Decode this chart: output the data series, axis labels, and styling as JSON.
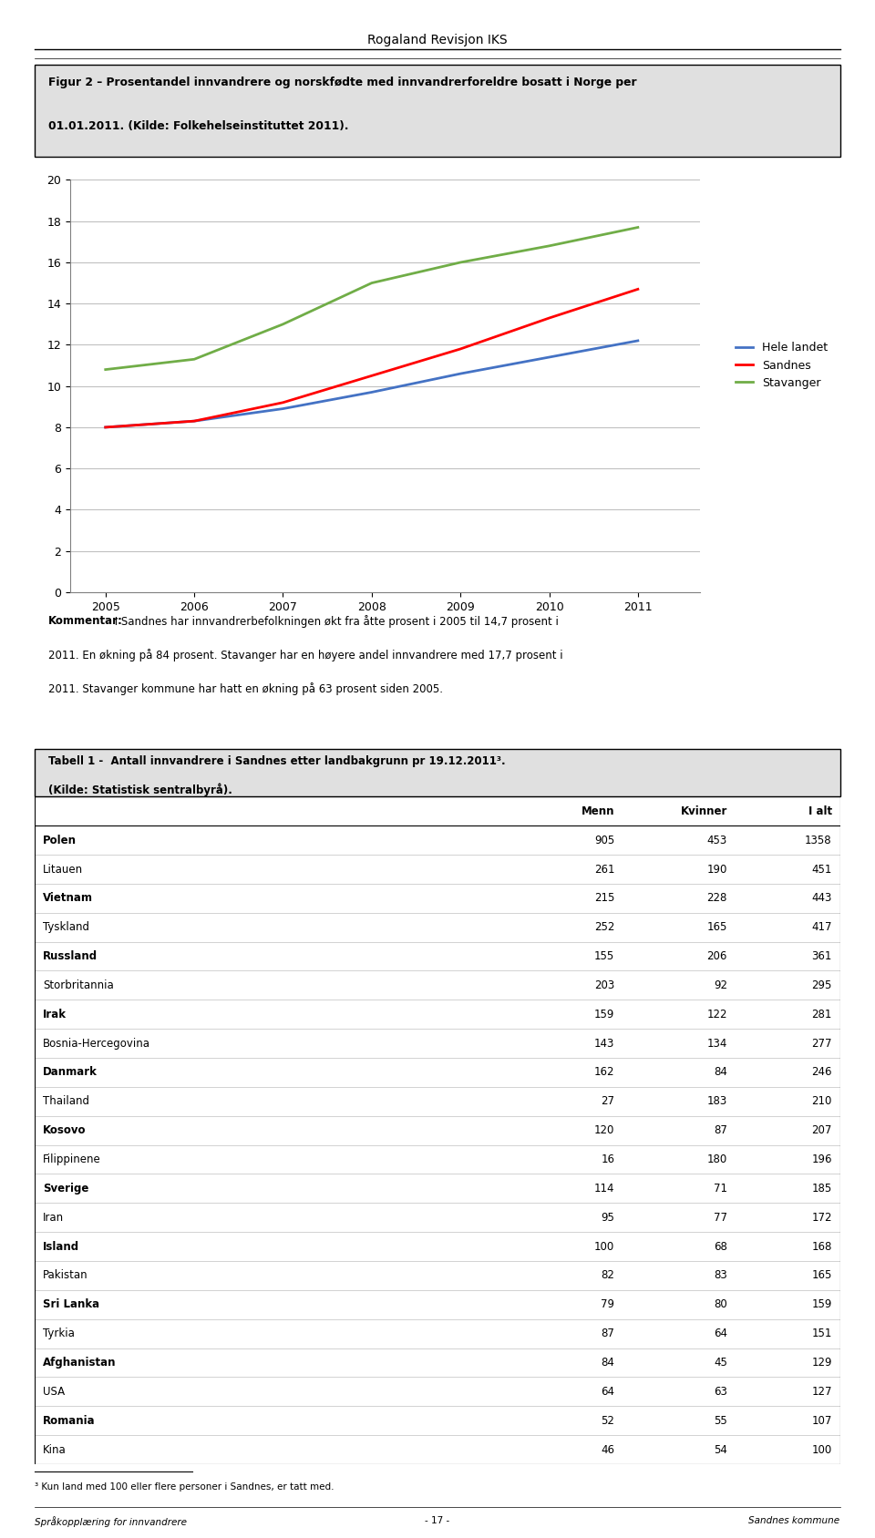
{
  "header": "Rogaland Revisjon IKS",
  "fig_title_line1": "Figur 2 – Prosentandel innvandrere og norskfødte med innvandrerforeldre bosatt i Norge per",
  "fig_title_line2": "01.01.2011. (Kilde: Folkehelseinstituttet 2011).",
  "years": [
    2005,
    2006,
    2007,
    2008,
    2009,
    2010,
    2011
  ],
  "hele_landet": [
    8.0,
    8.3,
    8.9,
    9.7,
    10.6,
    11.4,
    12.2
  ],
  "sandnes": [
    8.0,
    8.3,
    9.2,
    10.5,
    11.8,
    13.3,
    14.7
  ],
  "stavanger": [
    10.8,
    11.3,
    13.0,
    15.0,
    16.0,
    16.8,
    17.7
  ],
  "hele_landet_color": "#4472C4",
  "sandnes_color": "#FF0000",
  "stavanger_color": "#70AD47",
  "ylim": [
    0,
    20
  ],
  "yticks": [
    0,
    2,
    4,
    6,
    8,
    10,
    12,
    14,
    16,
    18,
    20
  ],
  "comment_line1": "Kommentar: I Sandnes har innvandrerbefolkningen økt fra åtte prosent i 2005 til 14,7 prosent i",
  "comment_line2": "2011. En økning på 84 prosent. Stavanger har en høyere andel innvandrere med 17,7 prosent i",
  "comment_line3": "2011. Stavanger kommune har hatt en økning på 63 prosent siden 2005.",
  "comment_bold_prefix": "Kommentar:",
  "table_title_line1": "Tabell 1 -  Antall innvandrere i Sandnes etter landbakgrunn pr 19.12.2011³.",
  "table_title_line2": "(Kilde: Statistisk sentralbyrå).",
  "table_headers": [
    "",
    "Menn",
    "Kvinner",
    "I alt"
  ],
  "table_rows": [
    [
      "Polen",
      905,
      453,
      1358
    ],
    [
      "Litauen",
      261,
      190,
      451
    ],
    [
      "Vietnam",
      215,
      228,
      443
    ],
    [
      "Tyskland",
      252,
      165,
      417
    ],
    [
      "Russland",
      155,
      206,
      361
    ],
    [
      "Storbritannia",
      203,
      92,
      295
    ],
    [
      "Irak",
      159,
      122,
      281
    ],
    [
      "Bosnia-Hercegovina",
      143,
      134,
      277
    ],
    [
      "Danmark",
      162,
      84,
      246
    ],
    [
      "Thailand",
      27,
      183,
      210
    ],
    [
      "Kosovo",
      120,
      87,
      207
    ],
    [
      "Filippinene",
      16,
      180,
      196
    ],
    [
      "Sverige",
      114,
      71,
      185
    ],
    [
      "Iran",
      95,
      77,
      172
    ],
    [
      "Island",
      100,
      68,
      168
    ],
    [
      "Pakistan",
      82,
      83,
      165
    ],
    [
      "Sri Lanka",
      79,
      80,
      159
    ],
    [
      "Tyrkia",
      87,
      64,
      151
    ],
    [
      "Afghanistan",
      84,
      45,
      129
    ],
    [
      "USA",
      64,
      63,
      127
    ],
    [
      "Romania",
      52,
      55,
      107
    ],
    [
      "Kina",
      46,
      54,
      100
    ]
  ],
  "footnote": "³ Kun land med 100 eller flere personer i Sandnes, er tatt med.",
  "footer_left": "Språkopplæring for innvandrere",
  "footer_center": "- 17 -",
  "footer_right": "Sandnes kommune"
}
